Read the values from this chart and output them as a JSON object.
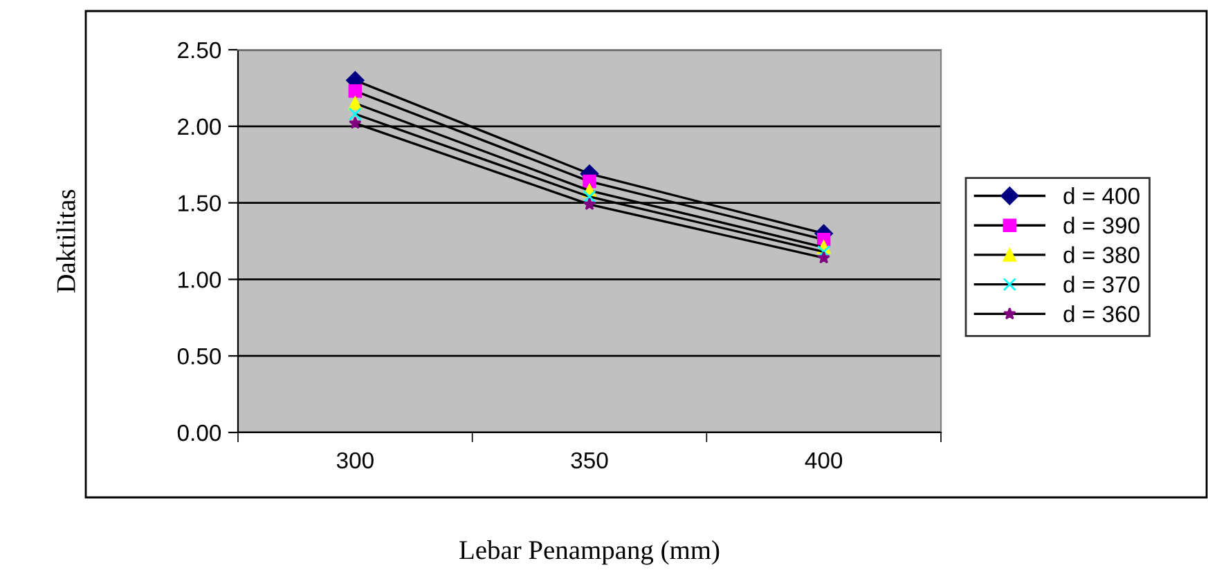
{
  "chart_data": {
    "type": "line",
    "xlabel": "Lebar Penampang (mm)",
    "ylabel": "Daktilitas",
    "categories": [
      "300",
      "350",
      "400"
    ],
    "ylim": [
      0,
      2.5
    ],
    "yticks": [
      {
        "value": 0,
        "label": "0.00"
      },
      {
        "value": 0.5,
        "label": "0.50"
      },
      {
        "value": 1,
        "label": "1.00"
      },
      {
        "value": 1.5,
        "label": "1.50"
      },
      {
        "value": 2,
        "label": "2.00"
      },
      {
        "value": 2.5,
        "label": "2.50"
      }
    ],
    "grid": "y",
    "legend": "right",
    "line_style": "solid",
    "series": [
      {
        "name": "d = 400",
        "color": "#000080",
        "marker": "diamond",
        "values": [
          2.3,
          1.69,
          1.3
        ]
      },
      {
        "name": "d = 390",
        "color": "#ff00ff",
        "marker": "square",
        "values": [
          2.23,
          1.64,
          1.26
        ]
      },
      {
        "name": "d = 380",
        "color": "#ffff00",
        "marker": "triangle",
        "values": [
          2.15,
          1.58,
          1.21
        ]
      },
      {
        "name": "d = 370",
        "color": "#00ffff",
        "marker": "cross",
        "values": [
          2.08,
          1.54,
          1.18
        ]
      },
      {
        "name": "d = 360",
        "color": "#800080",
        "marker": "star",
        "values": [
          2.02,
          1.49,
          1.14
        ]
      }
    ]
  }
}
